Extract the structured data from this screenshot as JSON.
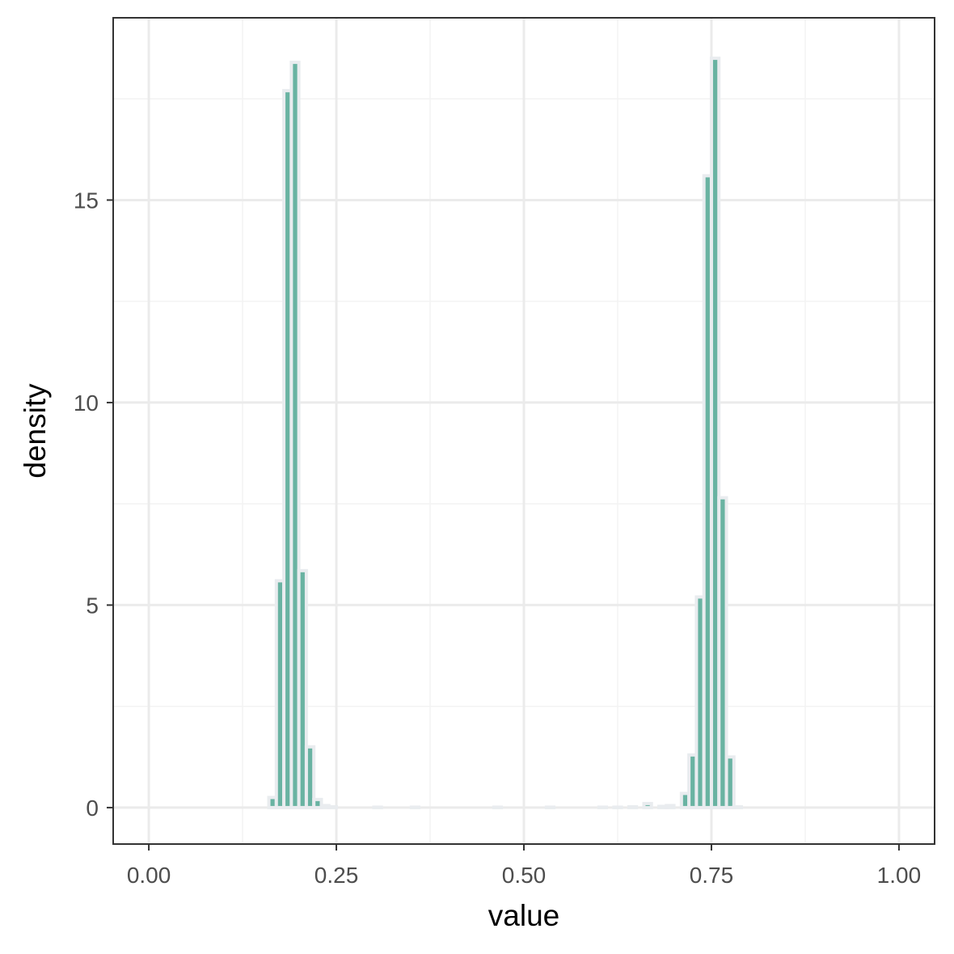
{
  "chart_data": {
    "type": "bar",
    "title": "",
    "xlabel": "value",
    "ylabel": "density",
    "xlim": [
      -0.0475,
      1.0475
    ],
    "ylim": [
      -0.9,
      19.5
    ],
    "x_ticks": [
      0,
      0.25,
      0.5,
      0.75,
      1
    ],
    "x_tick_labels": [
      "0.00",
      "0.25",
      "0.50",
      "0.75",
      "1.00"
    ],
    "y_ticks": [
      0,
      5,
      10,
      15
    ],
    "y_tick_labels": [
      "0",
      "5",
      "10",
      "15"
    ],
    "x_minor_ticks": [
      0.125,
      0.375,
      0.625,
      0.875
    ],
    "y_minor_ticks": [
      2.5,
      7.5,
      12.5,
      17.5
    ],
    "grid": true,
    "bin_width": 0.01,
    "bins": [
      {
        "x": 0.165,
        "y": 0.25
      },
      {
        "x": 0.175,
        "y": 5.6
      },
      {
        "x": 0.185,
        "y": 17.7
      },
      {
        "x": 0.195,
        "y": 18.4
      },
      {
        "x": 0.205,
        "y": 5.85
      },
      {
        "x": 0.215,
        "y": 1.5
      },
      {
        "x": 0.225,
        "y": 0.2
      },
      {
        "x": 0.235,
        "y": 0.05
      },
      {
        "x": 0.245,
        "y": 0.02
      },
      {
        "x": 0.305,
        "y": 0.01
      },
      {
        "x": 0.355,
        "y": 0.01
      },
      {
        "x": 0.465,
        "y": 0.01
      },
      {
        "x": 0.535,
        "y": 0.01
      },
      {
        "x": 0.605,
        "y": 0.01
      },
      {
        "x": 0.625,
        "y": 0.01
      },
      {
        "x": 0.645,
        "y": 0.02
      },
      {
        "x": 0.665,
        "y": 0.1
      },
      {
        "x": 0.685,
        "y": 0.03
      },
      {
        "x": 0.695,
        "y": 0.05
      },
      {
        "x": 0.715,
        "y": 0.35
      },
      {
        "x": 0.725,
        "y": 1.3
      },
      {
        "x": 0.735,
        "y": 5.2
      },
      {
        "x": 0.745,
        "y": 15.6
      },
      {
        "x": 0.755,
        "y": 18.5
      },
      {
        "x": 0.765,
        "y": 7.65
      },
      {
        "x": 0.775,
        "y": 1.25
      },
      {
        "x": 0.785,
        "y": 0.02
      }
    ],
    "colors": {
      "fill": "#69b3a2",
      "outline": "#e9ecef",
      "panel_border": "#333333",
      "grid_major": "#ebebeb",
      "grid_minor": "#f3f3f3",
      "tick_text": "#4d4d4d"
    }
  }
}
